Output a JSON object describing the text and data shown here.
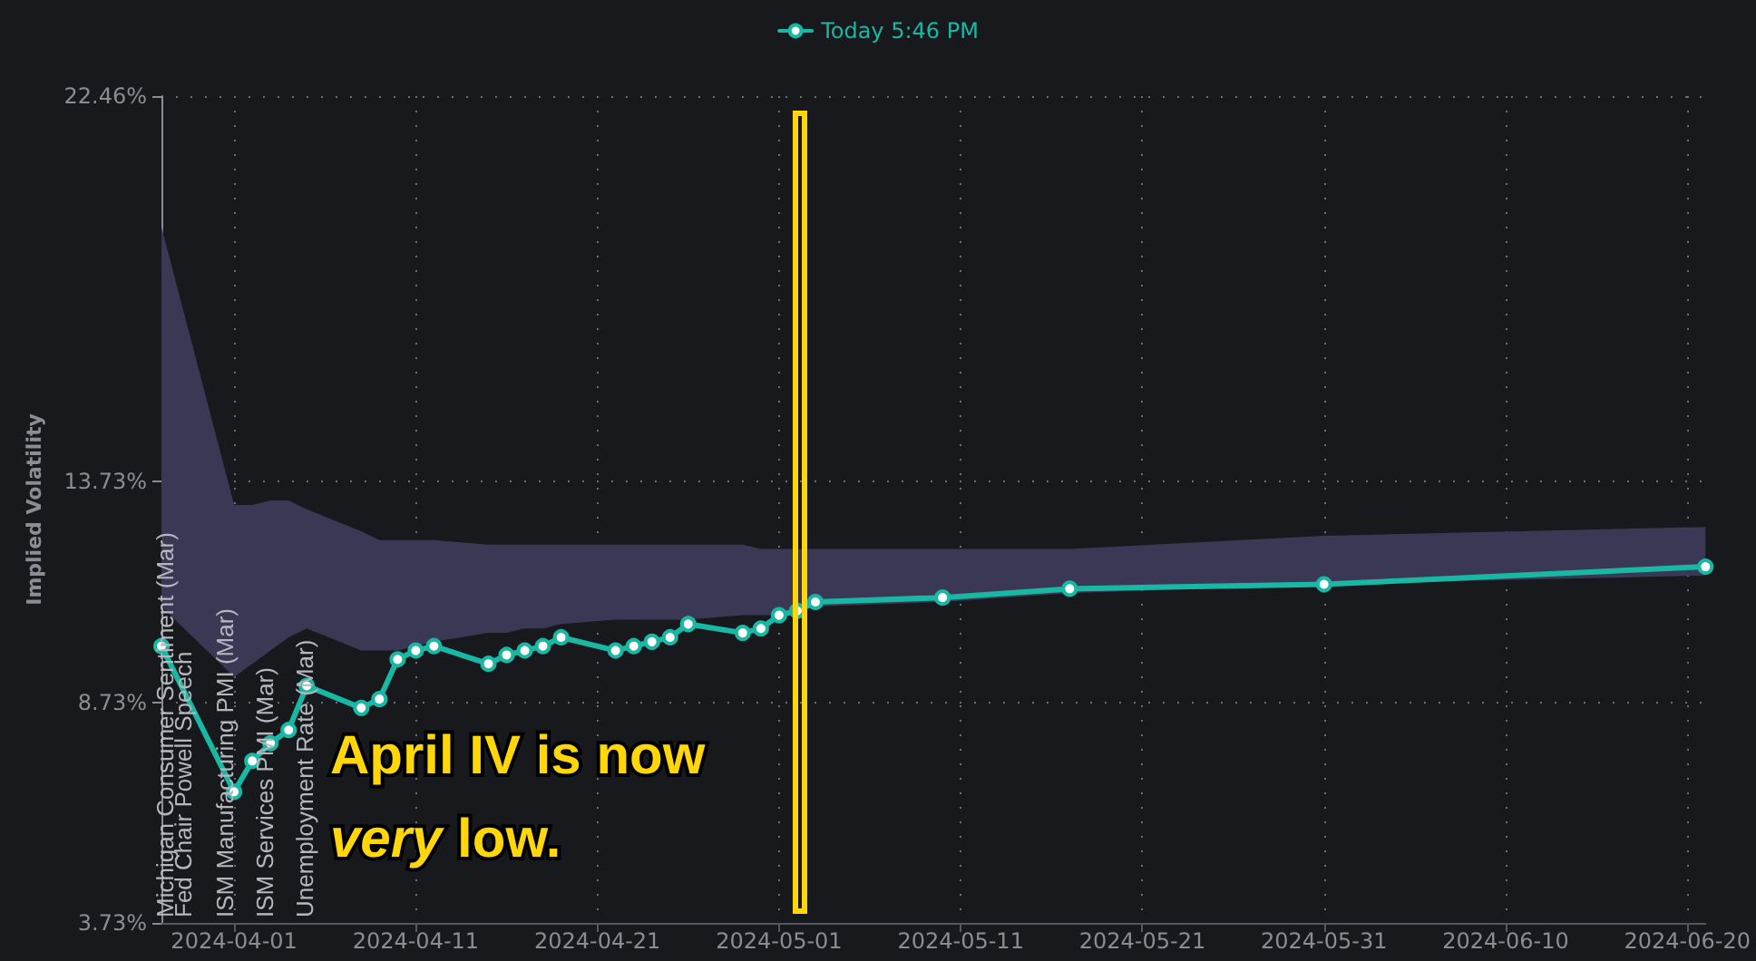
{
  "chart_data": {
    "type": "line",
    "ylabel": "Implied Volatility",
    "x": [
      "2024-03-28",
      "2024-04-01",
      "2024-04-02",
      "2024-04-03",
      "2024-04-04",
      "2024-04-05",
      "2024-04-08",
      "2024-04-09",
      "2024-04-10",
      "2024-04-11",
      "2024-04-12",
      "2024-04-15",
      "2024-04-16",
      "2024-04-17",
      "2024-04-18",
      "2024-04-19",
      "2024-04-22",
      "2024-04-23",
      "2024-04-24",
      "2024-04-25",
      "2024-04-26",
      "2024-04-29",
      "2024-04-30",
      "2024-05-01",
      "2024-05-02",
      "2024-05-03",
      "2024-05-10",
      "2024-05-17",
      "2024-05-31",
      "2024-06-21"
    ],
    "series": [
      {
        "name": "Today 5:46 PM",
        "color": "#19b8a4",
        "values": [
          10.0,
          6.7,
          7.4,
          7.8,
          8.1,
          9.1,
          8.6,
          8.8,
          9.7,
          9.9,
          10.0,
          9.6,
          9.8,
          9.9,
          10.0,
          10.2,
          9.9,
          10.0,
          10.1,
          10.2,
          10.5,
          10.3,
          10.4,
          10.7,
          10.8,
          11.0,
          11.1,
          11.3,
          11.4,
          11.8
        ],
        "lower": [
          10.9,
          9.3,
          9.6,
          9.9,
          10.2,
          10.4,
          9.9,
          9.9,
          9.9,
          10.0,
          10.1,
          10.3,
          10.3,
          10.4,
          10.4,
          10.5,
          10.6,
          10.6,
          10.6,
          10.6,
          10.6,
          10.7,
          10.7,
          10.7,
          10.8,
          10.9,
          11.0,
          11.2,
          11.4,
          11.6
        ],
        "upper": [
          19.5,
          13.2,
          13.2,
          13.3,
          13.3,
          13.1,
          12.6,
          12.4,
          12.4,
          12.4,
          12.4,
          12.3,
          12.3,
          12.3,
          12.3,
          12.3,
          12.3,
          12.3,
          12.3,
          12.3,
          12.3,
          12.3,
          12.2,
          12.2,
          12.2,
          12.2,
          12.2,
          12.2,
          12.5,
          12.7
        ]
      }
    ],
    "xlim": [
      "2024-03-28",
      "2024-06-21"
    ],
    "xticks": [
      "2024-04-01",
      "2024-04-11",
      "2024-04-21",
      "2024-05-01",
      "2024-05-11",
      "2024-05-21",
      "2024-05-31",
      "2024-06-10",
      "2024-06-20"
    ],
    "ylim": [
      3.73,
      22.46
    ],
    "yticks": [
      {
        "value": 3.73,
        "label": "3.73%"
      },
      {
        "value": 8.73,
        "label": "8.73%"
      },
      {
        "value": 13.73,
        "label": "13.73%"
      },
      {
        "value": 22.46,
        "label": "22.46%"
      }
    ],
    "grid": true,
    "legend": "top",
    "marker": "circle",
    "line_style": "solid",
    "annotations": [
      "Michigan Consumer Sentiment (Mar)",
      "Fed Chair Powell Speech",
      "ISM Manufacturing PMI (Mar)",
      "ISM Services PMI (Mar)",
      "Unemployment Rate (Mar)",
      "April IV is now very low."
    ]
  }
}
